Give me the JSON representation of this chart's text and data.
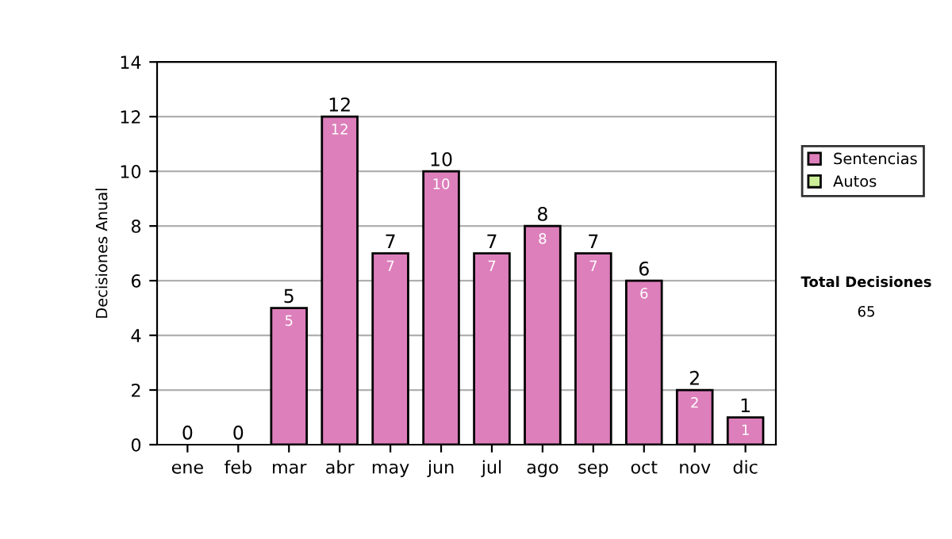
{
  "chart_data": {
    "type": "bar",
    "stacked": true,
    "ylabel": "Decisiones Anual",
    "categories": [
      "ene",
      "feb",
      "mar",
      "abr",
      "may",
      "jun",
      "jul",
      "ago",
      "sep",
      "oct",
      "nov",
      "dic"
    ],
    "series": [
      {
        "name": "Sentencias",
        "color": "#dd7fbb",
        "values": [
          0,
          0,
          5,
          12,
          7,
          10,
          7,
          8,
          7,
          6,
          2,
          1
        ],
        "value_labels": [
          null,
          null,
          "5",
          "12",
          "7",
          "10",
          "7",
          "8",
          "7",
          "6",
          "2",
          "1"
        ]
      },
      {
        "name": "Autos",
        "color": "#ccee99",
        "values": [
          0,
          0,
          0,
          0,
          0,
          0,
          0,
          0,
          0,
          0,
          0,
          0
        ]
      }
    ],
    "totals": [
      "0",
      "0",
      "5",
      "12",
      "7",
      "10",
      "7",
      "8",
      "7",
      "6",
      "2",
      "1"
    ],
    "ylim": [
      0,
      14
    ],
    "yticks": [
      0,
      2,
      4,
      6,
      8,
      10,
      12,
      14
    ],
    "grid": "y",
    "legend": "right",
    "annotations": [
      "Total Decisiones",
      "65"
    ]
  }
}
